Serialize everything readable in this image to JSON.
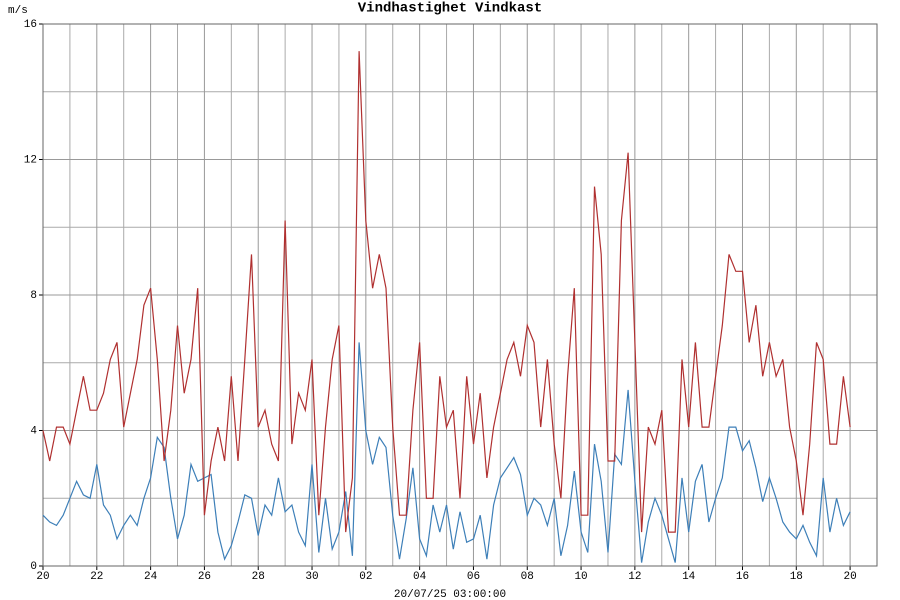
{
  "chart_data": {
    "type": "line",
    "y_label": "m/s",
    "x_label": "20/07/25 03:00:00",
    "x": [
      0,
      0.25,
      0.5,
      0.75,
      1,
      1.25,
      1.5,
      1.75,
      2,
      2.25,
      2.5,
      2.75,
      3,
      3.25,
      3.5,
      3.75,
      4,
      4.25,
      4.5,
      4.75,
      5,
      5.25,
      5.5,
      5.75,
      6,
      6.25,
      6.5,
      6.75,
      7,
      7.25,
      7.5,
      7.75,
      8,
      8.25,
      8.5,
      8.75,
      9,
      9.25,
      9.5,
      9.75,
      10,
      10.25,
      10.5,
      10.75,
      11,
      11.25,
      11.5,
      11.75,
      12,
      12.25,
      12.5,
      12.75,
      13,
      13.25,
      13.5,
      13.75,
      14,
      14.25,
      14.5,
      14.75,
      15,
      15.25,
      15.5,
      15.75,
      16,
      16.25,
      16.5,
      16.75,
      17,
      17.25,
      17.5,
      17.75,
      18,
      18.25,
      18.5,
      18.75,
      19,
      19.25,
      19.5,
      19.75,
      20,
      20.25,
      20.5,
      20.75,
      21,
      21.25,
      21.5,
      21.75,
      22,
      22.25,
      22.5,
      22.75,
      23,
      23.25,
      23.5,
      23.75,
      24,
      24.25,
      24.5,
      24.75,
      25,
      25.25,
      25.5,
      25.75,
      26,
      26.25,
      26.5,
      26.75,
      27,
      27.25,
      27.5,
      27.75,
      28,
      28.25,
      28.5,
      28.75,
      29,
      29.25,
      29.5,
      29.75,
      30
    ],
    "series": [
      {
        "name": "Vindhastighet",
        "color": "#3d7fb8",
        "values": [
          1.5,
          1.3,
          1.2,
          1.5,
          2.0,
          2.5,
          2.1,
          2.0,
          3.0,
          1.8,
          1.5,
          0.8,
          1.2,
          1.5,
          1.2,
          2.0,
          2.6,
          3.8,
          3.5,
          2.0,
          0.8,
          1.5,
          3.0,
          2.5,
          2.6,
          2.7,
          1.0,
          0.2,
          0.6,
          1.3,
          2.1,
          2.0,
          0.9,
          1.8,
          1.5,
          2.6,
          1.6,
          1.8,
          1.0,
          0.6,
          3.0,
          0.4,
          2.0,
          0.5,
          1.0,
          2.2,
          0.3,
          6.6,
          4.0,
          3.0,
          3.8,
          3.5,
          1.5,
          0.2,
          1.4,
          2.9,
          0.8,
          0.3,
          1.8,
          1.0,
          1.8,
          0.5,
          1.6,
          0.7,
          0.8,
          1.5,
          0.2,
          1.8,
          2.6,
          2.9,
          3.2,
          2.7,
          1.5,
          2.0,
          1.8,
          1.2,
          2.0,
          0.3,
          1.2,
          2.8,
          1.0,
          0.4,
          3.6,
          2.5,
          0.4,
          3.3,
          3.0,
          5.2,
          2.5,
          0.1,
          1.3,
          2.0,
          1.5,
          0.8,
          0.1,
          2.6,
          1.0,
          2.5,
          3.0,
          1.3,
          2.0,
          2.6,
          4.1,
          4.1,
          3.4,
          3.7,
          2.9,
          1.9,
          2.6,
          2.0,
          1.3,
          1.0,
          0.8,
          1.2,
          0.7,
          0.3,
          2.6,
          1.0,
          2.0,
          1.2,
          1.6
        ]
      },
      {
        "name": "Vindkast",
        "color": "#b03030",
        "values": [
          4.0,
          3.1,
          4.1,
          4.1,
          3.6,
          4.6,
          5.6,
          4.6,
          4.6,
          5.1,
          6.1,
          6.6,
          4.1,
          5.1,
          6.1,
          7.7,
          8.2,
          6.1,
          3.1,
          4.6,
          7.1,
          5.1,
          6.1,
          8.2,
          1.5,
          3.1,
          4.1,
          3.1,
          5.6,
          3.1,
          6.1,
          9.2,
          4.1,
          4.6,
          3.6,
          3.1,
          10.2,
          3.6,
          5.1,
          4.6,
          6.1,
          1.5,
          4.1,
          6.1,
          7.1,
          1.0,
          2.6,
          15.2,
          10.2,
          8.2,
          9.2,
          8.2,
          4.1,
          1.5,
          1.5,
          4.6,
          6.6,
          2.0,
          2.0,
          5.6,
          4.1,
          4.6,
          2.0,
          5.6,
          3.6,
          5.1,
          2.6,
          4.1,
          5.1,
          6.1,
          6.6,
          5.6,
          7.1,
          6.6,
          4.1,
          6.1,
          3.6,
          2.0,
          5.6,
          8.2,
          1.5,
          1.5,
          11.2,
          9.2,
          3.1,
          3.1,
          10.2,
          12.2,
          6.6,
          1.0,
          4.1,
          3.6,
          4.6,
          1.0,
          1.0,
          6.1,
          4.1,
          6.6,
          4.1,
          4.1,
          5.6,
          7.1,
          9.2,
          8.7,
          8.7,
          6.6,
          7.7,
          5.6,
          6.6,
          5.6,
          6.1,
          4.1,
          3.1,
          1.5,
          3.6,
          6.6,
          6.1,
          3.6,
          3.6,
          5.6,
          4.1
        ]
      }
    ],
    "xlim": [
      0,
      31
    ],
    "xticks": [
      {
        "value": 0,
        "label": "20"
      },
      {
        "value": 2,
        "label": "22"
      },
      {
        "value": 4,
        "label": "24"
      },
      {
        "value": 6,
        "label": "26"
      },
      {
        "value": 8,
        "label": "28"
      },
      {
        "value": 10,
        "label": "30"
      },
      {
        "value": 12,
        "label": "02"
      },
      {
        "value": 14,
        "label": "04"
      },
      {
        "value": 16,
        "label": "06"
      },
      {
        "value": 18,
        "label": "08"
      },
      {
        "value": 20,
        "label": "10"
      },
      {
        "value": 22,
        "label": "12"
      },
      {
        "value": 24,
        "label": "14"
      },
      {
        "value": 26,
        "label": "16"
      },
      {
        "value": 28,
        "label": "18"
      },
      {
        "value": 30,
        "label": "20"
      }
    ],
    "minor_xticks": [
      1,
      3,
      5,
      7,
      9,
      11,
      13,
      15,
      17,
      19,
      21,
      23,
      25,
      27,
      29
    ],
    "ylim": [
      0,
      16
    ],
    "yticks": [
      0,
      4,
      8,
      12,
      16
    ],
    "minor_yticks": [
      2,
      6,
      10,
      14
    ],
    "grid": true
  }
}
